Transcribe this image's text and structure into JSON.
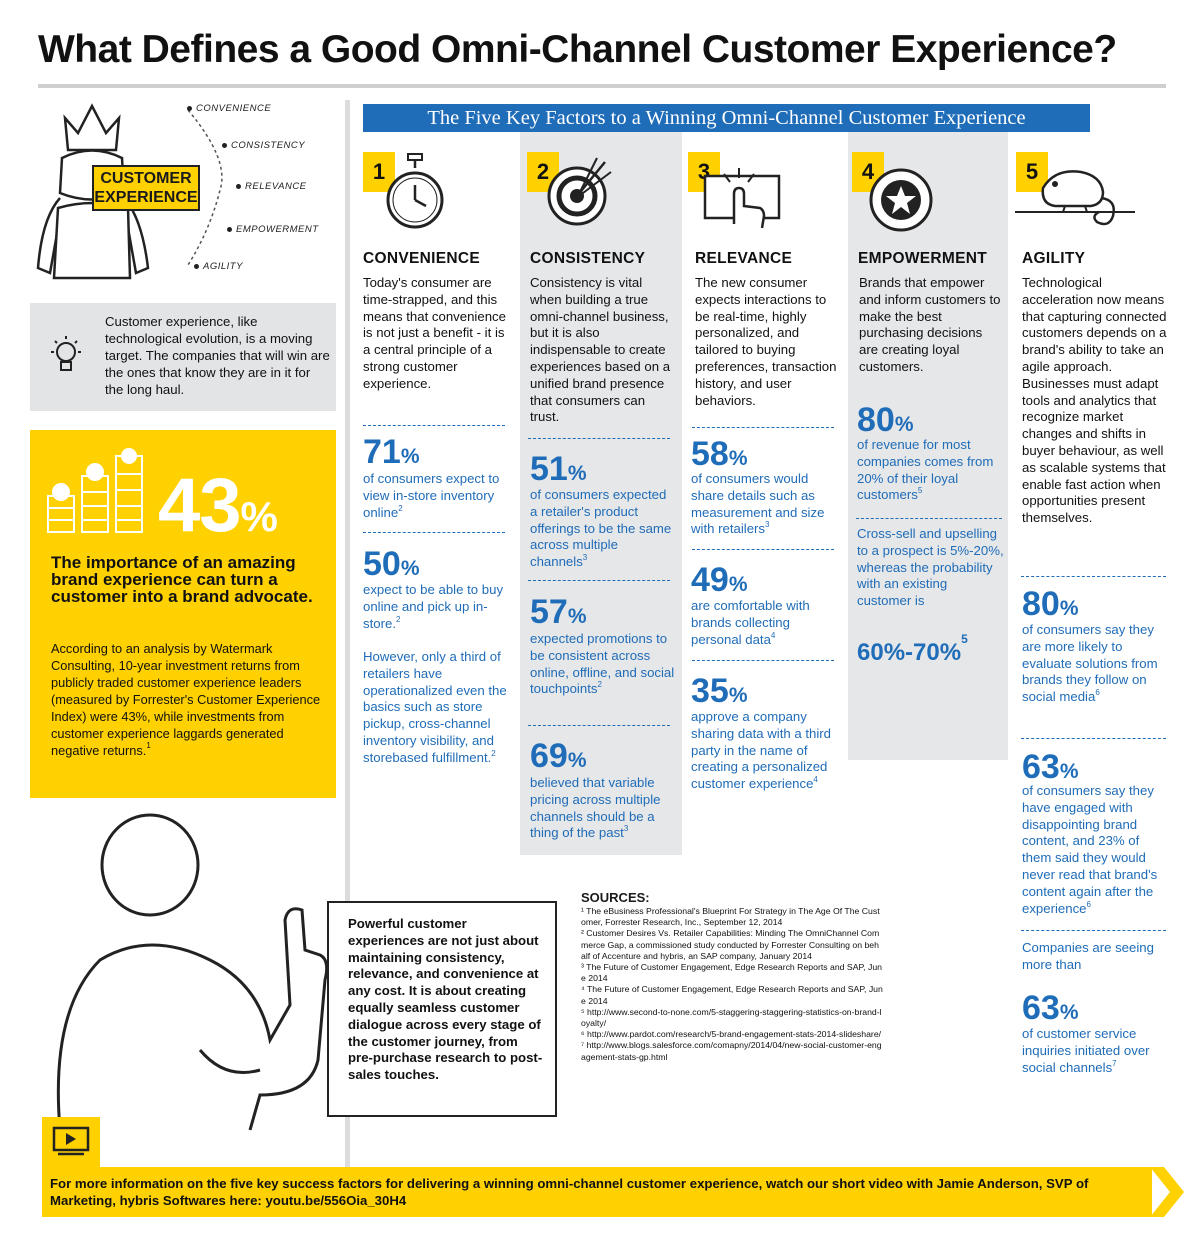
{
  "title": "What Defines a Good Omni-Channel Customer Experience?",
  "hero": {
    "label_line1": "CUSTOMER",
    "label_line2": "EXPERIENCE",
    "evolution": [
      "CONVENIENCE",
      "CONSISTENCY",
      "RELEVANCE",
      "EMPOWERMENT",
      "AGILITY"
    ]
  },
  "tip": "Customer experience, like technological evolution, is a moving target. The companies that will win are the ones that know they are in it for the long haul.",
  "highlight": {
    "value": "43",
    "unit": "%",
    "headline": "The importance of an amazing brand experience can turn a customer into a brand advocate.",
    "text": "According to an analysis by Watermark Consulting, 10-year investment returns from publicly traded customer experience leaders (measured by Forrester's Customer Experience Index) were 43%, while investments from customer experience laggards generated negative returns.",
    "text_ref": "1"
  },
  "banner": "The Five Key Factors to a Winning Omni-Channel Customer Experience",
  "factors": [
    {
      "number": "1",
      "heading": "CONVENIENCE",
      "body": "Today's consumer are time-strapped, and this means that convenience is not just a benefit - it is a central principle of a strong customer experience.",
      "stats": [
        {
          "value": "71",
          "unit": "%",
          "desc": "of consumers expect to view in-store inventory online",
          "ref": "2"
        },
        {
          "value": "50",
          "unit": "%",
          "desc": "expect to be able to buy online and pick up in-store.",
          "ref": "2"
        }
      ],
      "note": "However, only a third of retailers have operationalized even the basics such as store pickup, cross-channel inventory visibility, and storebased fulfillment.",
      "note_ref": "2"
    },
    {
      "number": "2",
      "heading": "CONSISTENCY",
      "body": "Consistency is vital when building a true omni-channel business, but it is also indispensable to create experiences based on a unified brand presence that consumers can trust.",
      "stats": [
        {
          "value": "51",
          "unit": "%",
          "desc": "of consumers expected a retailer's product offerings to be the same across multiple channels",
          "ref": "3"
        },
        {
          "value": "57",
          "unit": "%",
          "desc": "expected promotions to be consistent across online, offline, and social touchpoints",
          "ref": "2"
        },
        {
          "value": "69",
          "unit": "%",
          "desc": "believed that variable pricing across multiple channels should be a thing of the past",
          "ref": "3"
        }
      ]
    },
    {
      "number": "3",
      "heading": "RELEVANCE",
      "body": "The new consumer expects interactions to be real-time, highly personalized, and tailored to buying preferences, transaction history, and user behaviors.",
      "stats": [
        {
          "value": "58",
          "unit": "%",
          "desc": "of consumers would share details such as measurement and size with retailers",
          "ref": "3"
        },
        {
          "value": "49",
          "unit": "%",
          "desc": "are comfortable with brands collecting personal data",
          "ref": "4"
        },
        {
          "value": "35",
          "unit": "%",
          "desc": "approve a company sharing data with a third party in the name of creating a personalized customer experience",
          "ref": "4"
        }
      ]
    },
    {
      "number": "4",
      "heading": "EMPOWERMENT",
      "body": "Brands that empower and inform customers to make the best purchasing decisions are creating loyal customers.",
      "stats": [
        {
          "value": "80",
          "unit": "%",
          "desc": "of revenue for most companies comes from 20% of their loyal customers",
          "ref": "5"
        }
      ],
      "note": "Cross-sell and upselling to a prospect is 5%-20%, whereas the probability with an existing customer is",
      "range": "60%-70%",
      "range_ref": "5"
    },
    {
      "number": "5",
      "heading": "AGILITY",
      "body": "Technological acceleration now means that capturing connected customers depends on a brand's ability to take an agile approach. Businesses must adapt tools and analytics that recognize market changes and shifts in buyer behaviour, as well as scalable systems that enable fast action when opportunities present themselves.",
      "stats": [
        {
          "value": "80",
          "unit": "%",
          "desc": "of consumers say they are more likely to evaluate solutions from brands they follow on social media",
          "ref": "6"
        },
        {
          "value": "63",
          "unit": "%",
          "desc": "of consumers say they have engaged with disappointing brand content, and 23% of them said they would never read that brand's content again after the experience",
          "ref": "6"
        }
      ],
      "note": "Companies are seeing more than",
      "stat_last": {
        "value": "63",
        "unit": "%",
        "desc": "of customer service inquiries initiated over social channels",
        "ref": "7"
      }
    }
  ],
  "quote": "Powerful customer experiences are not just about maintaining consistency, relevance, and convenience at any cost. It is about creating equally seamless customer dialogue across every stage of the customer journey, from pre-purchase research to post-sales touches.",
  "sources": {
    "heading": "SOURCES:",
    "items": [
      "¹ The eBusiness Professional's Blueprint For Strategy in The Age Of The Customer, Forrester Research, Inc., September 12, 2014",
      "² Customer Desires Vs. Retailer Capabilities: Minding The OmniChannel Commerce Gap, a commissioned study conducted by Forrester Consulting on behalf of Accenture and hybris, an SAP company, January 2014",
      "³ The Future of Customer Engagement, Edge Research Reports and SAP, June 2014",
      "⁴ The Future of Customer Engagement, Edge Research Reports and SAP, June 2014",
      "⁵ http://www.second-to-none.com/5-staggering-staggering-statistics-on-brand-loyalty/",
      "⁶ http://www.pardot.com/research/5-brand-engagement-stats-2014-slideshare/",
      "⁷ http://www.blogs.salesforce.com/comapny/2014/04/new-social-customer-engagement-stats-gp.html"
    ]
  },
  "footer": "For more information on the five key success factors for delivering a winning omni-channel customer experience, watch our short video with Jamie Anderson, SVP of Marketing, hybris Softwares here: youtu.be/556Oia_30H4",
  "colors": {
    "accent_yellow": "#ffd100",
    "accent_blue": "#1f6cb8",
    "panel_gray": "#e6e7e9"
  }
}
